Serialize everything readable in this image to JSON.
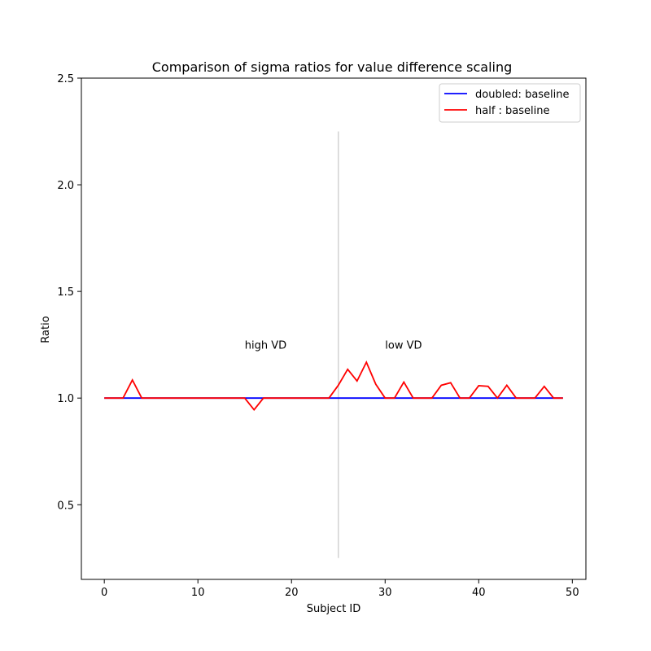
{
  "chart_data": {
    "type": "line",
    "title": "Comparison of sigma ratios for value difference scaling",
    "xlabel": "Subject ID",
    "ylabel": "Ratio",
    "xlim": [
      -2.45,
      51.45
    ],
    "ylim": [
      0.15,
      2.5
    ],
    "xticks": [
      0,
      10,
      20,
      30,
      40,
      50
    ],
    "yticks": [
      0.5,
      1.0,
      1.5,
      2.0,
      2.5
    ],
    "xtick_labels": [
      "0",
      "10",
      "20",
      "30",
      "40",
      "50"
    ],
    "ytick_labels": [
      "0.5",
      "1.0",
      "1.5",
      "2.0",
      "2.5"
    ],
    "legend_position": "top-right",
    "x": [
      0,
      1,
      2,
      3,
      4,
      5,
      6,
      7,
      8,
      9,
      10,
      11,
      12,
      13,
      14,
      15,
      16,
      17,
      18,
      19,
      20,
      21,
      22,
      23,
      24,
      25,
      26,
      27,
      28,
      29,
      30,
      31,
      32,
      33,
      34,
      35,
      36,
      37,
      38,
      39,
      40,
      41,
      42,
      43,
      44,
      45,
      46,
      47,
      48,
      49
    ],
    "series": [
      {
        "name": "doubled: baseline",
        "color": "#0000ff",
        "values": [
          1,
          1,
          1,
          1,
          1,
          1,
          1,
          1,
          1,
          1,
          1,
          1,
          1,
          1,
          1,
          1,
          1,
          1,
          1,
          1,
          1,
          1,
          1,
          1,
          1,
          1,
          1,
          1,
          1,
          1,
          1,
          1,
          1,
          1,
          1,
          1,
          1,
          1,
          1,
          1,
          1,
          1,
          1,
          1,
          1,
          1,
          1,
          1,
          1,
          1
        ]
      },
      {
        "name": "half : baseline",
        "color": "#ff0000",
        "values": [
          1.0,
          1.0,
          1.0,
          1.085,
          1.0,
          1.0,
          1.0,
          1.0,
          1.0,
          1.0,
          1.0,
          1.0,
          1.0,
          1.0,
          1.0,
          1.0,
          0.945,
          1.0,
          1.0,
          1.0,
          1.0,
          1.0,
          1.0,
          1.0,
          1.0,
          1.06,
          1.135,
          1.08,
          1.168,
          1.065,
          1.0,
          1.0,
          1.075,
          1.0,
          1.0,
          1.0,
          1.06,
          1.072,
          1.0,
          1.0,
          1.058,
          1.055,
          1.0,
          1.06,
          1.0,
          1.0,
          1.0,
          1.055,
          1.0,
          1.0
        ]
      }
    ],
    "divider": {
      "x": 25,
      "y_from": 0.25,
      "y_to": 2.25,
      "color": "#d3d3d3"
    },
    "annotations": [
      {
        "text": "high VD",
        "x": 15,
        "y": 1.25
      },
      {
        "text": "low VD",
        "x": 30,
        "y": 1.25
      }
    ]
  }
}
